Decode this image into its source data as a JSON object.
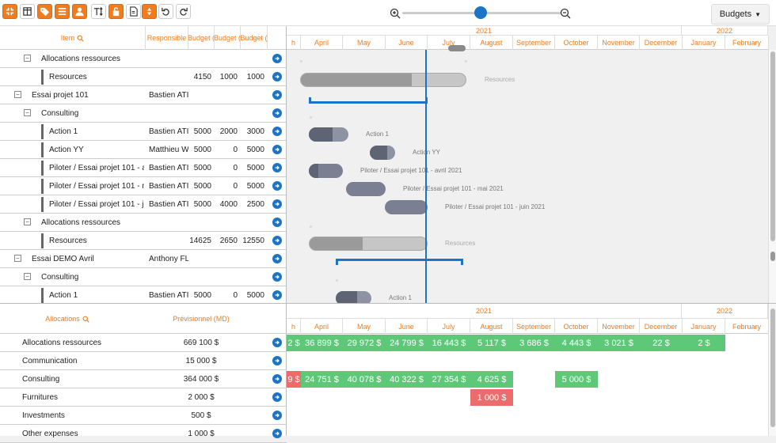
{
  "toolbar": {
    "buttons": [
      "collapse-icon",
      "columns-icon",
      "tag-icon",
      "list-icon",
      "user-icon",
      "text-height-icon",
      "lock-icon",
      "export-icon",
      "sort-icon",
      "undo-icon",
      "redo-icon"
    ],
    "budgets_label": "Budgets"
  },
  "colors": {
    "accent": "#f07c1e",
    "blue": "#1b74c5",
    "green": "#5dc878",
    "red": "#ec6b6b"
  },
  "grid": {
    "headers": {
      "item": "Item",
      "responsible": "Responsible",
      "budget1": "Budget (",
      "budget2": "Budget (",
      "budget3": "Budget ("
    },
    "rows": [
      {
        "level": 1,
        "label": "Allocations ressources",
        "type": "group",
        "collapse": "−"
      },
      {
        "level": 2,
        "label": "Resources",
        "type": "item",
        "b1": "4150",
        "b2": "1000",
        "b3": "1000"
      },
      {
        "level": 0,
        "label": "Essai projet 101",
        "type": "project",
        "collapse": "−",
        "resp": "Bastien ATI"
      },
      {
        "level": 1,
        "label": "Consulting",
        "type": "group",
        "collapse": "−"
      },
      {
        "level": 2,
        "label": "Action 1",
        "type": "item",
        "resp": "Bastien ATI",
        "b1": "5000",
        "b2": "2000",
        "b3": "3000"
      },
      {
        "level": 2,
        "label": "Action YY",
        "type": "item",
        "resp": "Matthieu W",
        "b1": "5000",
        "b2": "0",
        "b3": "5000"
      },
      {
        "level": 2,
        "label": "Piloter / Essai projet 101 - a",
        "type": "item",
        "resp": "Bastien ATI",
        "b1": "5000",
        "b2": "0",
        "b3": "5000"
      },
      {
        "level": 2,
        "label": "Piloter / Essai projet 101 - m",
        "type": "item",
        "resp": "Bastien ATI",
        "b1": "5000",
        "b2": "0",
        "b3": "5000"
      },
      {
        "level": 2,
        "label": "Piloter / Essai projet 101 - ju",
        "type": "item",
        "resp": "Bastien ATI",
        "b1": "5000",
        "b2": "4000",
        "b3": "2500"
      },
      {
        "level": 1,
        "label": "Allocations ressources",
        "type": "group",
        "collapse": "−"
      },
      {
        "level": 2,
        "label": "Resources",
        "type": "item",
        "b1": "14625",
        "b2": "2650",
        "b3": "12550"
      },
      {
        "level": 0,
        "label": "Essai DEMO Avril",
        "type": "project",
        "collapse": "−",
        "resp": "Anthony FL"
      },
      {
        "level": 1,
        "label": "Consulting",
        "type": "group",
        "collapse": "−"
      },
      {
        "level": 2,
        "label": "Action 1",
        "type": "item",
        "resp": "Bastien ATI",
        "b1": "5000",
        "b2": "0",
        "b3": "5000"
      }
    ]
  },
  "timeline": {
    "year_2021": "2021",
    "year_2022": "2022",
    "months": [
      "h",
      "April",
      "May",
      "June",
      "July",
      "August",
      "September",
      "October",
      "November",
      "December",
      "January",
      "February"
    ]
  },
  "gantt_labels": {
    "resources1": "Resources",
    "action1": "Action 1",
    "actionyy": "Action YY",
    "pilot_apr": "Piloter / Essai projet 101 - avril 2021",
    "pilot_may": "Piloter / Essai projet 101 - mai 2021",
    "pilot_jun": "Piloter / Essai projet 101 - juin 2021",
    "resources2": "Resources",
    "action1b": "Action 1"
  },
  "allocations": {
    "header_left": "Allocations",
    "header_right": "Prévisionnel (MD)",
    "rows": [
      {
        "label": "Allocations ressources",
        "value": "669 100 $"
      },
      {
        "label": "Communication",
        "value": "15 000 $"
      },
      {
        "label": "Consulting",
        "value": "364 000 $"
      },
      {
        "label": "Furnitures",
        "value": "2 000 $"
      },
      {
        "label": "Investments",
        "value": "500 $"
      },
      {
        "label": "Other expenses",
        "value": "1 000 $"
      }
    ],
    "cells_row0": [
      "2 $",
      "36 899 $",
      "29 972 $",
      "24 799 $",
      "16 443 $",
      "5 117 $",
      "3 686 $",
      "4 443 $",
      "3 021 $",
      "22 $",
      "2 $"
    ],
    "cells_row2": [
      "9 $",
      "24 751 $",
      "40 078 $",
      "40 322 $",
      "27 354 $",
      "4 625 $",
      "5 000 $"
    ],
    "cell_row3": "1 000 $"
  }
}
